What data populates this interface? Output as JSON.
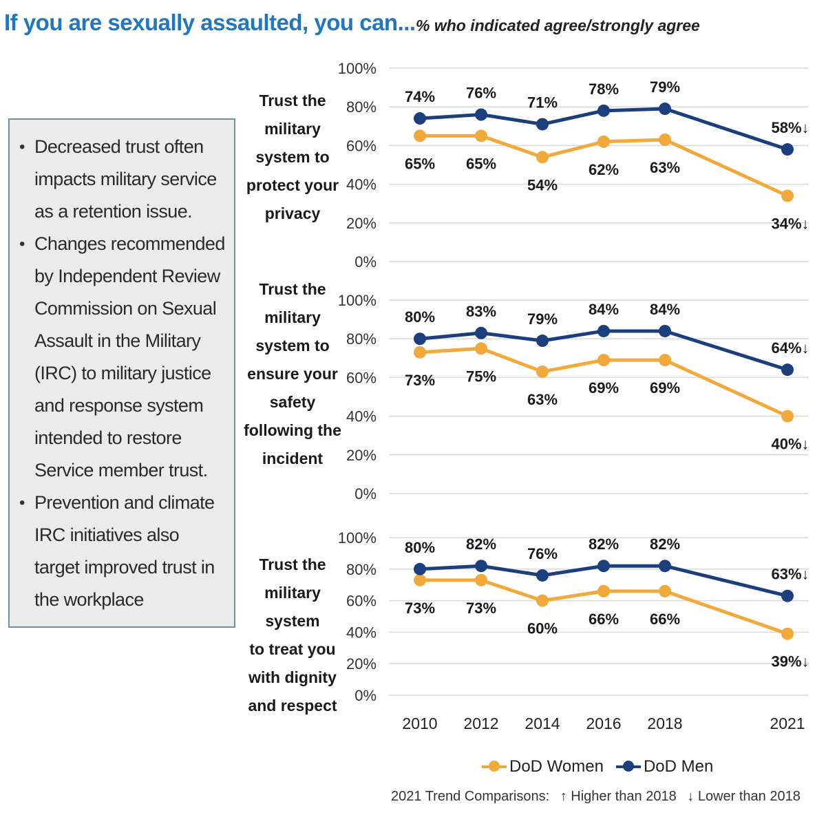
{
  "header": {
    "title": "If you are sexually assaulted, you can...",
    "subtitle": "% who indicated agree/strongly agree"
  },
  "notes": {
    "items": [
      "Decreased trust often impacts military service as a retention issue.",
      "Changes recommended by Independent Review Commission on Sexual Assault in the Military (IRC) to military justice and response system intended to restore Service member trust.",
      "Prevention and climate IRC initiatives also target improved trust in the workplace"
    ]
  },
  "panels": {
    "privacy": [
      "Trust the",
      "military",
      "system to",
      "protect your",
      "privacy"
    ],
    "safety": [
      "Trust the",
      "military",
      "system to",
      "ensure your",
      "safety",
      "following the",
      "incident"
    ],
    "dignity": [
      "Trust the",
      "military system",
      "to treat you",
      "with dignity",
      "and respect"
    ]
  },
  "legend": {
    "women": "DoD Women",
    "men": "DoD Men"
  },
  "trend_note": {
    "label": "2021 Trend Comparisons:",
    "higher": "↑ Higher than 2018",
    "lower": "↓ Lower than 2018"
  },
  "colors": {
    "women": "#f2a93b",
    "men": "#1b3e7d",
    "grid": "#d9d9d9",
    "title": "#1f76c2"
  },
  "chart_data": [
    {
      "type": "line",
      "title": "Trust the military system to protect your privacy",
      "categories": [
        "2010",
        "2012",
        "2014",
        "2016",
        "2018",
        "2021"
      ],
      "yticks": [
        "0%",
        "20%",
        "40%",
        "60%",
        "80%",
        "100%"
      ],
      "ylim": [
        0,
        100
      ],
      "series": [
        {
          "name": "DoD Men",
          "values": [
            74,
            76,
            71,
            78,
            79,
            58
          ],
          "labels": [
            "74%",
            "76%",
            "71%",
            "78%",
            "79%",
            "58%↓"
          ]
        },
        {
          "name": "DoD Women",
          "values": [
            65,
            65,
            54,
            62,
            63,
            34
          ],
          "labels": [
            "65%",
            "65%",
            "54%",
            "62%",
            "63%",
            "34%↓"
          ]
        }
      ]
    },
    {
      "type": "line",
      "title": "Trust the military system to ensure your safety following the incident",
      "categories": [
        "2010",
        "2012",
        "2014",
        "2016",
        "2018",
        "2021"
      ],
      "yticks": [
        "0%",
        "20%",
        "40%",
        "60%",
        "80%",
        "100%"
      ],
      "ylim": [
        0,
        100
      ],
      "series": [
        {
          "name": "DoD Men",
          "values": [
            80,
            83,
            79,
            84,
            84,
            64
          ],
          "labels": [
            "80%",
            "83%",
            "79%",
            "84%",
            "84%",
            "64%↓"
          ]
        },
        {
          "name": "DoD Women",
          "values": [
            73,
            75,
            63,
            69,
            69,
            40
          ],
          "labels": [
            "73%",
            "75%",
            "63%",
            "69%",
            "69%",
            "40%↓"
          ]
        }
      ]
    },
    {
      "type": "line",
      "title": "Trust the military system to treat you with dignity and respect",
      "categories": [
        "2010",
        "2012",
        "2014",
        "2016",
        "2018",
        "2021"
      ],
      "yticks": [
        "0%",
        "20%",
        "40%",
        "60%",
        "80%",
        "100%"
      ],
      "ylim": [
        0,
        100
      ],
      "series": [
        {
          "name": "DoD Men",
          "values": [
            80,
            82,
            76,
            82,
            82,
            63
          ],
          "labels": [
            "80%",
            "82%",
            "76%",
            "82%",
            "82%",
            "63%↓"
          ]
        },
        {
          "name": "DoD Women",
          "values": [
            73,
            73,
            60,
            66,
            66,
            39
          ],
          "labels": [
            "73%",
            "73%",
            "60%",
            "66%",
            "66%",
            "39%↓"
          ]
        }
      ]
    }
  ]
}
